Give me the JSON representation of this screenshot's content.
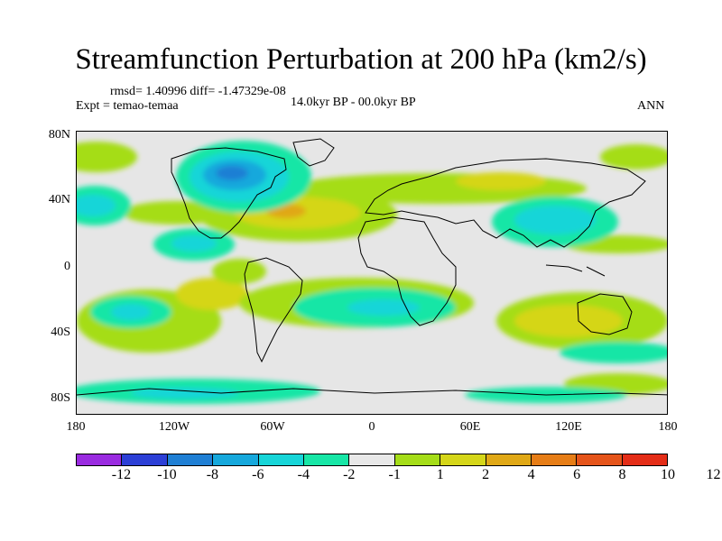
{
  "title": "Streamfunction Perturbation at 200 hPa (km2/s)",
  "stats_line": "rmsd= 1.40996 diff= -1.47329e-08",
  "experiment": "Expt = temao-temaa",
  "period": "14.0kyr BP - 00.0kyr BP",
  "season": "ANN",
  "lat_ticks": [
    "80N",
    "40N",
    "0",
    "40S",
    "80S"
  ],
  "lon_ticks": [
    "180",
    "120W",
    "60W",
    "0",
    "60E",
    "120E",
    "180"
  ],
  "colorbar": {
    "colors": [
      "#9a2be0",
      "#2c3fd6",
      "#1f7fd4",
      "#16a8dc",
      "#17d5d8",
      "#17e6a6",
      "#e8e8e8",
      "#a5dd18",
      "#d5d619",
      "#e0a816",
      "#e67d16",
      "#e5541a",
      "#e42d17"
    ],
    "labels": [
      "-12",
      "-10",
      "-8",
      "-6",
      "-4",
      "-2",
      "-1",
      "1",
      "2",
      "4",
      "6",
      "8",
      "10",
      "12"
    ]
  }
}
